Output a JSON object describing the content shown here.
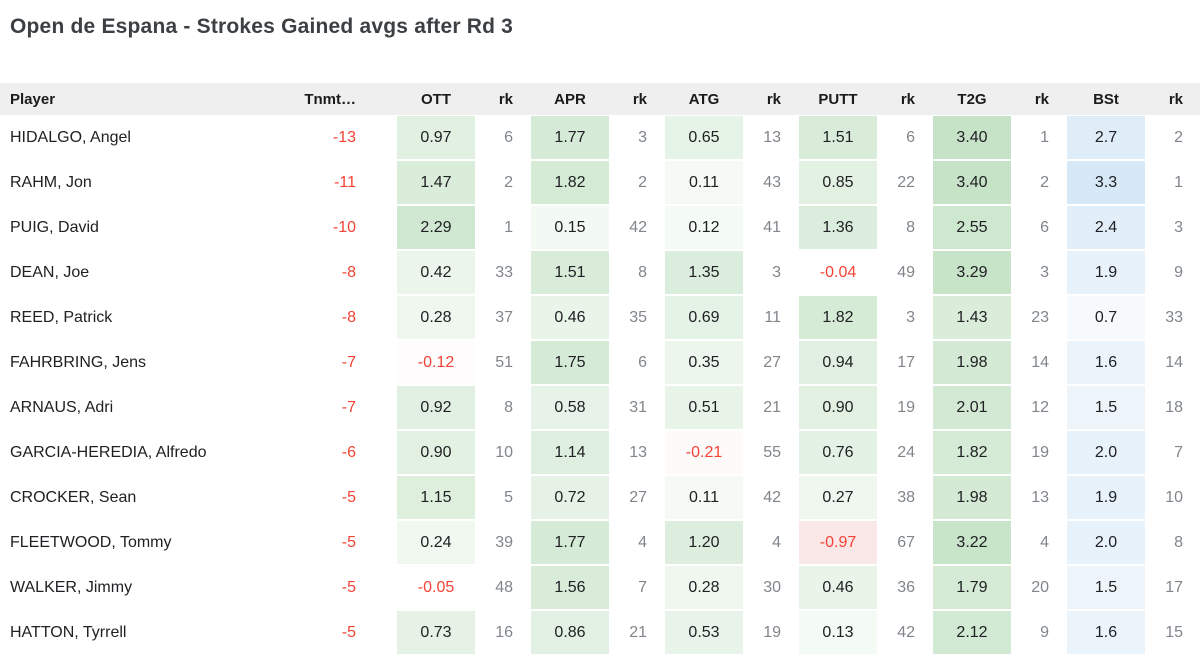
{
  "title": "Open de Espana - Strokes Gained avgs after Rd 3",
  "table": {
    "columns": {
      "player": "Player",
      "tnmt": "Tnmt…",
      "rk": "rk",
      "stats": [
        "OTT",
        "APR",
        "ATG",
        "PUTT",
        "T2G",
        "BSt"
      ]
    },
    "rows": [
      {
        "player": "HIDALGO, Angel",
        "tnmt": "-13",
        "stats": [
          {
            "v": "0.97",
            "rk": "6"
          },
          {
            "v": "1.77",
            "rk": "3"
          },
          {
            "v": "0.65",
            "rk": "13"
          },
          {
            "v": "1.51",
            "rk": "6"
          },
          {
            "v": "3.40",
            "rk": "1"
          },
          {
            "v": "2.7",
            "rk": "2"
          }
        ]
      },
      {
        "player": "RAHM, Jon",
        "tnmt": "-11",
        "stats": [
          {
            "v": "1.47",
            "rk": "2"
          },
          {
            "v": "1.82",
            "rk": "2"
          },
          {
            "v": "0.11",
            "rk": "43"
          },
          {
            "v": "0.85",
            "rk": "22"
          },
          {
            "v": "3.40",
            "rk": "2"
          },
          {
            "v": "3.3",
            "rk": "1"
          }
        ]
      },
      {
        "player": "PUIG, David",
        "tnmt": "-10",
        "stats": [
          {
            "v": "2.29",
            "rk": "1"
          },
          {
            "v": "0.15",
            "rk": "42"
          },
          {
            "v": "0.12",
            "rk": "41"
          },
          {
            "v": "1.36",
            "rk": "8"
          },
          {
            "v": "2.55",
            "rk": "6"
          },
          {
            "v": "2.4",
            "rk": "3"
          }
        ]
      },
      {
        "player": "DEAN, Joe",
        "tnmt": "-8",
        "stats": [
          {
            "v": "0.42",
            "rk": "33"
          },
          {
            "v": "1.51",
            "rk": "8"
          },
          {
            "v": "1.35",
            "rk": "3"
          },
          {
            "v": "-0.04",
            "rk": "49"
          },
          {
            "v": "3.29",
            "rk": "3"
          },
          {
            "v": "1.9",
            "rk": "9"
          }
        ]
      },
      {
        "player": "REED, Patrick",
        "tnmt": "-8",
        "stats": [
          {
            "v": "0.28",
            "rk": "37"
          },
          {
            "v": "0.46",
            "rk": "35"
          },
          {
            "v": "0.69",
            "rk": "11"
          },
          {
            "v": "1.82",
            "rk": "3"
          },
          {
            "v": "1.43",
            "rk": "23"
          },
          {
            "v": "0.7",
            "rk": "33"
          }
        ]
      },
      {
        "player": "FAHRBRING, Jens",
        "tnmt": "-7",
        "stats": [
          {
            "v": "-0.12",
            "rk": "51"
          },
          {
            "v": "1.75",
            "rk": "6"
          },
          {
            "v": "0.35",
            "rk": "27"
          },
          {
            "v": "0.94",
            "rk": "17"
          },
          {
            "v": "1.98",
            "rk": "14"
          },
          {
            "v": "1.6",
            "rk": "14"
          }
        ]
      },
      {
        "player": "ARNAUS, Adri",
        "tnmt": "-7",
        "stats": [
          {
            "v": "0.92",
            "rk": "8"
          },
          {
            "v": "0.58",
            "rk": "31"
          },
          {
            "v": "0.51",
            "rk": "21"
          },
          {
            "v": "0.90",
            "rk": "19"
          },
          {
            "v": "2.01",
            "rk": "12"
          },
          {
            "v": "1.5",
            "rk": "18"
          }
        ]
      },
      {
        "player": "GARCIA-HEREDIA, Alfredo",
        "tnmt": "-6",
        "stats": [
          {
            "v": "0.90",
            "rk": "10"
          },
          {
            "v": "1.14",
            "rk": "13"
          },
          {
            "v": "-0.21",
            "rk": "55"
          },
          {
            "v": "0.76",
            "rk": "24"
          },
          {
            "v": "1.82",
            "rk": "19"
          },
          {
            "v": "2.0",
            "rk": "7"
          }
        ]
      },
      {
        "player": "CROCKER, Sean",
        "tnmt": "-5",
        "stats": [
          {
            "v": "1.15",
            "rk": "5"
          },
          {
            "v": "0.72",
            "rk": "27"
          },
          {
            "v": "0.11",
            "rk": "42"
          },
          {
            "v": "0.27",
            "rk": "38"
          },
          {
            "v": "1.98",
            "rk": "13"
          },
          {
            "v": "1.9",
            "rk": "10"
          }
        ]
      },
      {
        "player": "FLEETWOOD, Tommy",
        "tnmt": "-5",
        "stats": [
          {
            "v": "0.24",
            "rk": "39"
          },
          {
            "v": "1.77",
            "rk": "4"
          },
          {
            "v": "1.20",
            "rk": "4"
          },
          {
            "v": "-0.97",
            "rk": "67"
          },
          {
            "v": "3.22",
            "rk": "4"
          },
          {
            "v": "2.0",
            "rk": "8"
          }
        ]
      },
      {
        "player": "WALKER, Jimmy",
        "tnmt": "-5",
        "stats": [
          {
            "v": "-0.05",
            "rk": "48"
          },
          {
            "v": "1.56",
            "rk": "7"
          },
          {
            "v": "0.28",
            "rk": "30"
          },
          {
            "v": "0.46",
            "rk": "36"
          },
          {
            "v": "1.79",
            "rk": "20"
          },
          {
            "v": "1.5",
            "rk": "17"
          }
        ]
      },
      {
        "player": "HATTON, Tyrrell",
        "tnmt": "-5",
        "stats": [
          {
            "v": "0.73",
            "rk": "16"
          },
          {
            "v": "0.86",
            "rk": "21"
          },
          {
            "v": "0.53",
            "rk": "19"
          },
          {
            "v": "0.13",
            "rk": "42"
          },
          {
            "v": "2.12",
            "rk": "9"
          },
          {
            "v": "1.6",
            "rk": "15"
          }
        ]
      }
    ]
  },
  "colors": {
    "heat_green": "#c6e3c7",
    "heat_blue": "#d7e9f7",
    "heat_pink": "#f8dada",
    "negative_text": "#f44336",
    "rank_text": "#80868b",
    "header_bg": "#efefef",
    "title_text": "#3c4043",
    "body_text": "#202124"
  },
  "heat_scale": {
    "green_max": 3.4,
    "blue_max": 3.3,
    "pink_max": 1.5
  }
}
